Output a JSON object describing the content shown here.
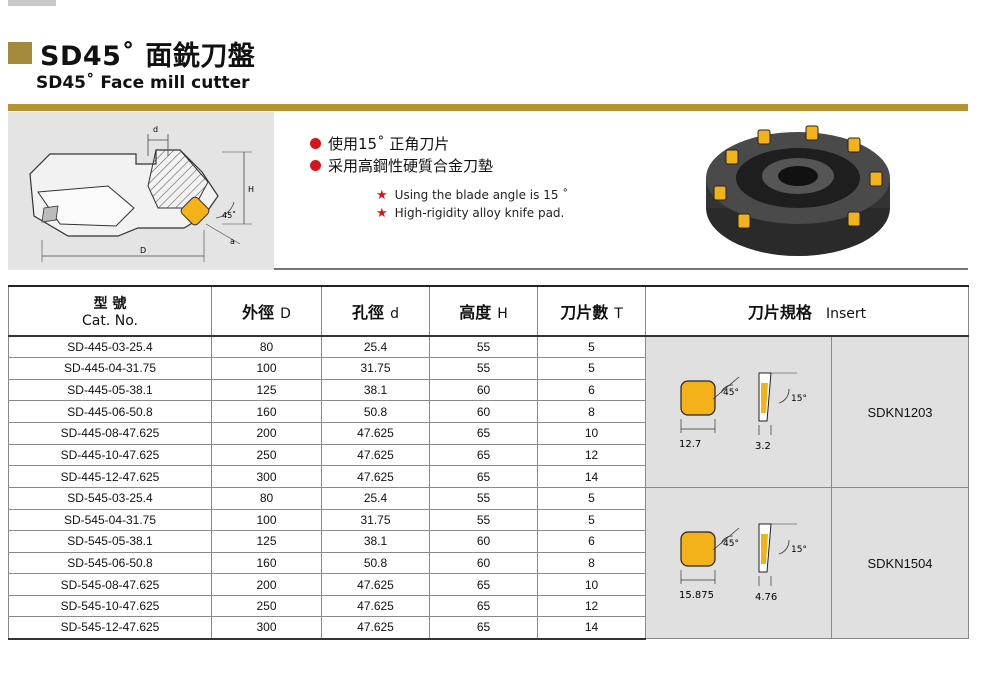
{
  "title": "SD45˚ 面銑刀盤",
  "subtitle": "SD45˚ Face mill cutter",
  "diagram_labels": {
    "d": "d",
    "H": "H",
    "D": "D",
    "angle": "45˚",
    "a": "a"
  },
  "features": [
    "使用15˚ 正角刀片",
    "采用高鋼性硬質合金刀墊"
  ],
  "notes": [
    "Using the blade angle is 15 ˚",
    "High-rigidity alloy knife pad."
  ],
  "colors": {
    "accent_gold": "#b7932f",
    "title_square": "#a68a3c",
    "bullet_red": "#d8141b",
    "insert_yellow": "#f3b21a",
    "panel_gray": "#e0e0e0"
  },
  "table": {
    "headers": {
      "cat_zh": "型 號",
      "cat_en": "Cat. No.",
      "outer_zh": "外徑",
      "outer_en": "D",
      "bore_zh": "孔徑",
      "bore_en": "d",
      "height_zh": "高度",
      "height_en": "H",
      "teeth_zh": "刀片數",
      "teeth_en": "T",
      "insert_zh": "刀片規格",
      "insert_en": "Insert"
    },
    "groups": [
      {
        "insert_code": "SDKN1203",
        "insert_dims": {
          "width": "12.7",
          "thickness": "3.2",
          "angle": "45°",
          "rake": "15°"
        },
        "rows": [
          [
            "SD-445-03-25.4",
            "80",
            "25.4",
            "55",
            "5"
          ],
          [
            "SD-445-04-31.75",
            "100",
            "31.75",
            "55",
            "5"
          ],
          [
            "SD-445-05-38.1",
            "125",
            "38.1",
            "60",
            "6"
          ],
          [
            "SD-445-06-50.8",
            "160",
            "50.8",
            "60",
            "8"
          ],
          [
            "SD-445-08-47.625",
            "200",
            "47.625",
            "65",
            "10"
          ],
          [
            "SD-445-10-47.625",
            "250",
            "47.625",
            "65",
            "12"
          ],
          [
            "SD-445-12-47.625",
            "300",
            "47.625",
            "65",
            "14"
          ]
        ]
      },
      {
        "insert_code": "SDKN1504",
        "insert_dims": {
          "width": "15.875",
          "thickness": "4.76",
          "angle": "45°",
          "rake": "15°"
        },
        "rows": [
          [
            "SD-545-03-25.4",
            "80",
            "25.4",
            "55",
            "5"
          ],
          [
            "SD-545-04-31.75",
            "100",
            "31.75",
            "55",
            "5"
          ],
          [
            "SD-545-05-38.1",
            "125",
            "38.1",
            "60",
            "6"
          ],
          [
            "SD-545-06-50.8",
            "160",
            "50.8",
            "60",
            "8"
          ],
          [
            "SD-545-08-47.625",
            "200",
            "47.625",
            "65",
            "10"
          ],
          [
            "SD-545-10-47.625",
            "250",
            "47.625",
            "65",
            "12"
          ],
          [
            "SD-545-12-47.625",
            "300",
            "47.625",
            "65",
            "14"
          ]
        ]
      }
    ]
  }
}
